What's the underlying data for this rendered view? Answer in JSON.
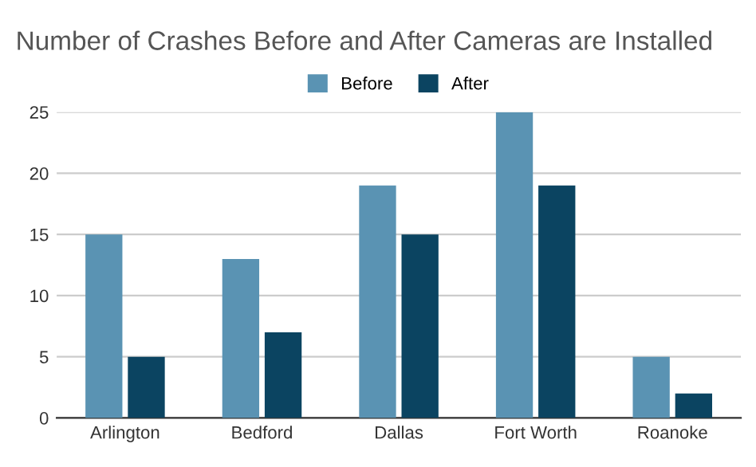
{
  "chart_data": {
    "type": "bar",
    "title": "Number of Crashes Before and After Cameras are Installed",
    "categories": [
      "Arlington",
      "Bedford",
      "Dallas",
      "Fort Worth",
      "Roanoke"
    ],
    "series": [
      {
        "name": "Before",
        "color": "#5a93b3",
        "values": [
          15,
          13,
          19,
          25,
          5
        ]
      },
      {
        "name": "After",
        "color": "#0b4461",
        "values": [
          5,
          7,
          15,
          19,
          2
        ]
      }
    ],
    "ylim": [
      0,
      25
    ],
    "yticks": [
      0,
      5,
      10,
      15,
      20,
      25
    ],
    "grid": "y",
    "legend": "top"
  }
}
